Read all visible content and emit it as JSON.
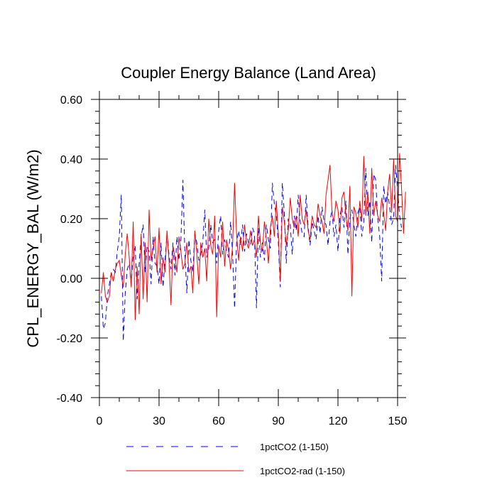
{
  "chart_data": {
    "type": "line",
    "title": "Coupler Energy Balance (Land Area)",
    "xlabel": "",
    "ylabel": "CPL_ENERGY_BAL  (W/m2)",
    "xlim": [
      0,
      150
    ],
    "ylim": [
      -0.4,
      0.6
    ],
    "x_ticks": [
      0,
      30,
      60,
      90,
      120,
      150
    ],
    "x_tick_labels": [
      "0",
      "30",
      "60",
      "90",
      "120",
      "150"
    ],
    "y_ticks": [
      -0.4,
      -0.2,
      0.0,
      0.2,
      0.4,
      0.6
    ],
    "y_tick_labels": [
      "-0.40",
      "-0.20",
      "0.00",
      "0.20",
      "0.40",
      "0.60"
    ],
    "grid": false,
    "legend_position": "bottom",
    "series": [
      {
        "name": "1pctCO2 (1-150)",
        "color": "#0000ff",
        "style": "dashed",
        "x_start": 1,
        "values": [
          -0.06,
          -0.17,
          -0.15,
          -0.06,
          -0.02,
          0.02,
          0.03,
          0.02,
          0.09,
          0.14,
          0.28,
          -0.21,
          -0.05,
          0.03,
          0.05,
          -0.02,
          0.08,
          0.11,
          -0.07,
          0.05,
          0.14,
          0.18,
          0.02,
          0.11,
          0.09,
          -0.02,
          0.14,
          0.05,
          0.04,
          -0.02,
          0.12,
          -0.03,
          0.06,
          0.15,
          0.08,
          0.03,
          0.12,
          0.01,
          0.14,
          0.06,
          0.13,
          0.33,
          0.08,
          -0.05,
          0.13,
          0.06,
          0.02,
          0.15,
          0.12,
          0.06,
          0.08,
          0.12,
          0.23,
          0.07,
          0.1,
          0.18,
          0.12,
          0.13,
          0.05,
          0.16,
          0.21,
          0.08,
          0.13,
          0.09,
          0.07,
          0.19,
          0.08,
          -0.1,
          0.12,
          0.16,
          0.11,
          0.18,
          0.09,
          0.15,
          0.12,
          0.11,
          0.17,
          0.15,
          -0.1,
          0.17,
          0.07,
          0.12,
          0.06,
          0.18,
          0.13,
          0.1,
          0.32,
          0.25,
          0.21,
          0.12,
          -0.03,
          0.32,
          0.22,
          0.05,
          0.2,
          0.18,
          0.08,
          0.21,
          0.16,
          0.28,
          0.19,
          0.15,
          0.14,
          0.28,
          0.17,
          0.11,
          0.19,
          0.16,
          0.13,
          0.21,
          0.15,
          0.24,
          0.19,
          0.18,
          0.11,
          0.19,
          0.23,
          0.14,
          0.18,
          0.09,
          0.21,
          0.24,
          0.17,
          0.26,
          0.08,
          0.2,
          0.23,
          0.18,
          0.14,
          0.22,
          0.24,
          0.14,
          0.19,
          0.37,
          0.21,
          0.26,
          0.12,
          0.35,
          0.33,
          0.2,
          0.14,
          -0.01,
          0.31,
          0.25,
          0.29,
          0.24,
          0.18,
          0.2,
          0.38,
          0.3,
          0.21,
          0.17
        ]
      },
      {
        "name": "1pctCO2-rad (1-150)",
        "color": "#ff0000",
        "style": "solid",
        "x_start": 1,
        "values": [
          -0.05,
          0.02,
          -0.06,
          -0.08,
          -0.06,
          0.02,
          -0.01,
          0.03,
          0.05,
          0.06,
          0.01,
          -0.03,
          0.08,
          0.15,
          0.07,
          -0.03,
          0.19,
          -0.14,
          0.04,
          -0.12,
          0.15,
          -0.07,
          0.12,
          -0.08,
          0.23,
          0.06,
          0.1,
          0.14,
          0.02,
          0.17,
          -0.02,
          0.07,
          0.02,
          0.16,
          0.06,
          -0.09,
          0.11,
          0.07,
          0.02,
          0.14,
          0.09,
          0.03,
          0.05,
          0.12,
          0.02,
          0.04,
          -0.05,
          0.16,
          0.08,
          -0.02,
          0.12,
          0.07,
          0.1,
          -0.01,
          0.2,
          0.11,
          0.08,
          0.21,
          -0.13,
          0.11,
          0.07,
          0.19,
          0.04,
          0.13,
          0.09,
          0.03,
          0.11,
          0.32,
          0.15,
          0.06,
          0.14,
          0.09,
          0.18,
          0.12,
          0.1,
          0.16,
          0.11,
          0.13,
          0.07,
          0.21,
          0.12,
          0.09,
          0.19,
          0.13,
          0.05,
          0.17,
          0.21,
          0.14,
          0.26,
          0.15,
          -0.01,
          0.24,
          0.19,
          0.11,
          0.16,
          0.27,
          0.2,
          0.17,
          0.21,
          0.14,
          0.28,
          0.2,
          0.18,
          0.23,
          0.16,
          0.13,
          0.21,
          0.18,
          0.17,
          0.25,
          0.21,
          0.19,
          0.15,
          0.28,
          0.33,
          0.38,
          0.22,
          0.19,
          0.26,
          0.23,
          0.15,
          0.27,
          0.29,
          0.21,
          0.16,
          0.31,
          -0.06,
          0.24,
          0.22,
          0.17,
          0.26,
          0.19,
          0.41,
          0.21,
          0.29,
          0.15,
          0.37,
          0.21,
          0.26,
          0.21,
          0.19,
          0.27,
          0.22,
          0.16,
          0.29,
          0.35,
          0.22,
          0.4,
          0.21,
          0.19,
          0.42,
          0.3,
          0.15,
          0.29
        ]
      }
    ]
  }
}
